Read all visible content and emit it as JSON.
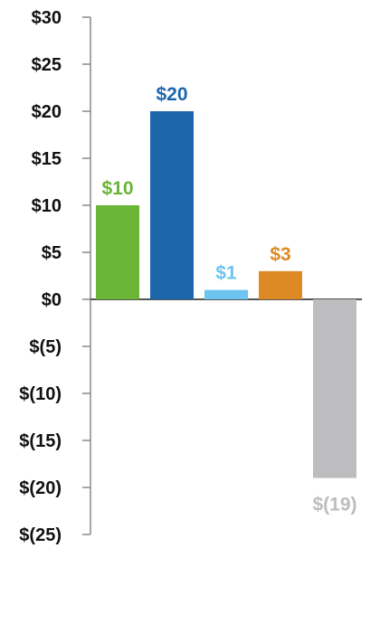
{
  "chart_data": {
    "type": "bar",
    "categories": [
      "",
      "",
      "",
      "",
      ""
    ],
    "values": [
      10,
      20,
      1,
      3,
      -19
    ],
    "value_labels": [
      "$10",
      "$20",
      "$1",
      "$3",
      "$(19)"
    ],
    "colors": [
      "#6bb536",
      "#1c66ac",
      "#6cc5f0",
      "#dd8a25",
      "#bdbdbf"
    ],
    "label_colors": [
      "#6bb536",
      "#1c66ac",
      "#6cc5f0",
      "#dd8a25",
      "#bdbdbf"
    ],
    "ylim": [
      -25,
      30
    ],
    "yticks": [
      30,
      25,
      20,
      15,
      10,
      5,
      0,
      -5,
      -10,
      -15,
      -20,
      -25
    ],
    "ytick_labels": [
      "$30",
      "$25",
      "$20",
      "$15",
      "$10",
      "$5",
      "$0",
      "$(5)",
      "$(10)",
      "$(15)",
      "$(20)",
      "$(25)"
    ],
    "title": "",
    "xlabel": "",
    "ylabel": "",
    "grid": false,
    "axis_color": "#888888",
    "zero_line_color": "#555555"
  }
}
